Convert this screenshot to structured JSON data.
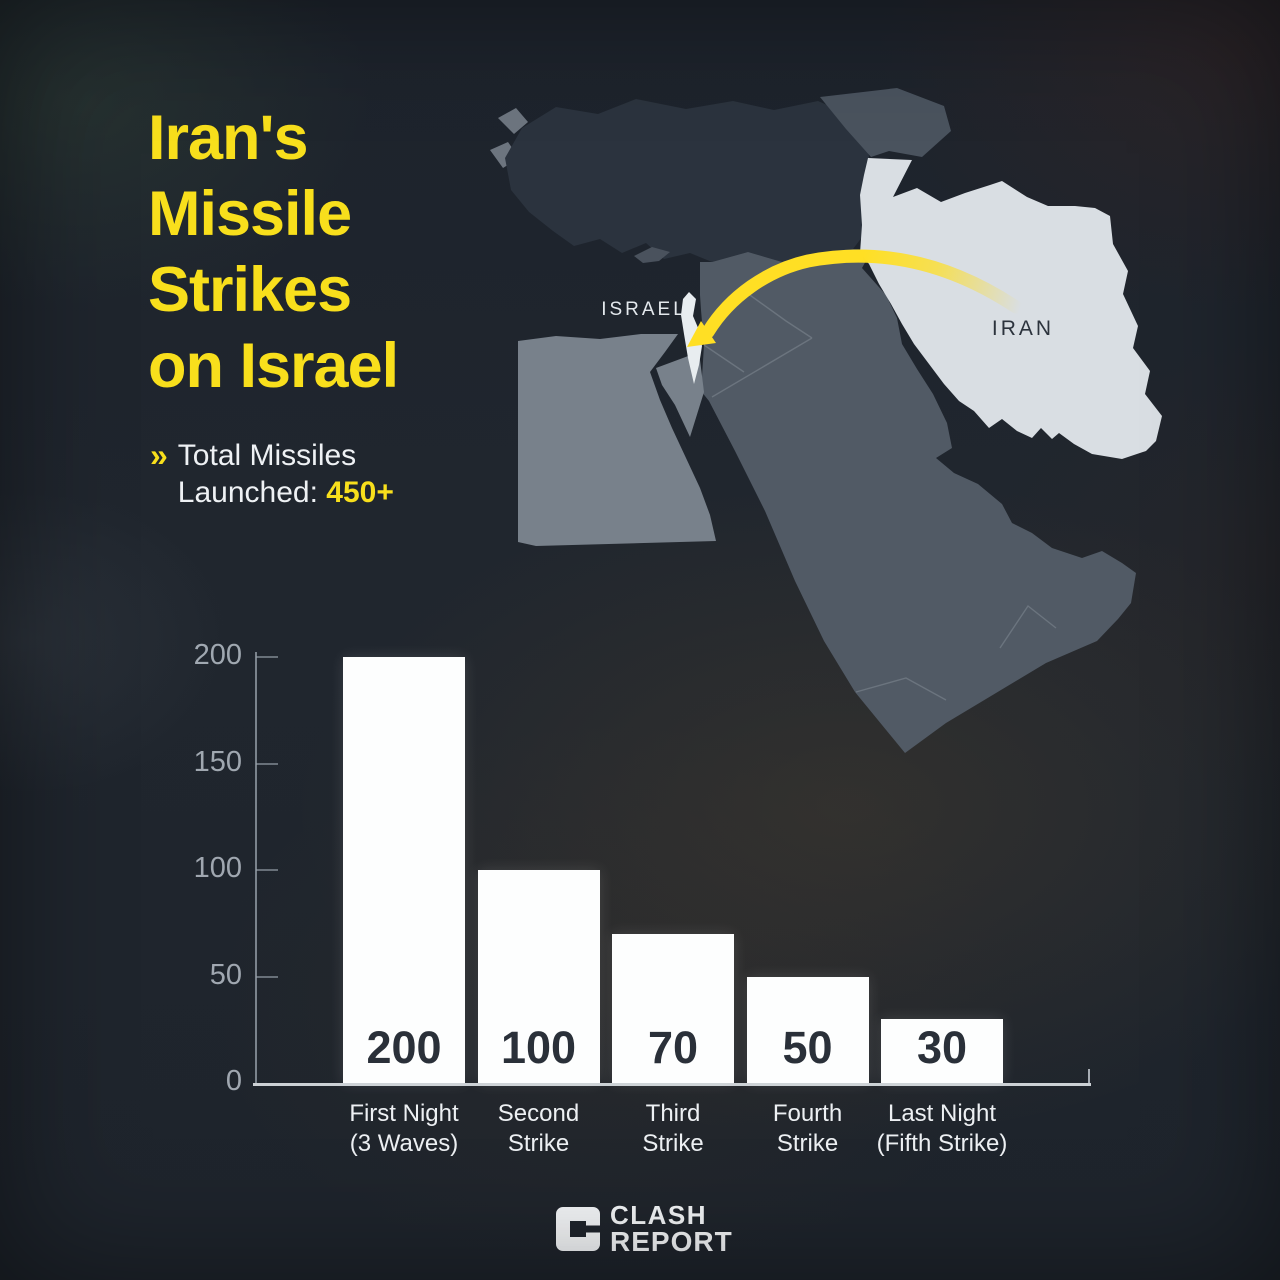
{
  "header": {
    "title": "Iran's\nMissile\nStrikes\non Israel",
    "subtitle": {
      "chevron": "»",
      "label": "Total Missiles Launched: ",
      "value": "450+"
    }
  },
  "map": {
    "israel_label": "ISRAEL",
    "iran_label": "IRAN",
    "arrow_color": "#ffdf24",
    "colors": {
      "turkey": "#2b333e",
      "arabia_levant": "#515a65",
      "egypt": "#78818b",
      "sinai": "#78818b",
      "cyprus": "#4a525d",
      "caucasus": "#4a535e",
      "aegean": "#7b848e",
      "iran": "#d9dee3",
      "israel": "#e8edf0",
      "border_lines": "#8b949e"
    }
  },
  "chart_data": {
    "type": "bar",
    "title": "",
    "categories": [
      "First Night\n(3 Waves)",
      "Second\nStrike",
      "Third\nStrike",
      "Fourth\nStrike",
      "Last Night\n(Fifth Strike)"
    ],
    "values": [
      200,
      100,
      70,
      50,
      30
    ],
    "value_labels": [
      "200",
      "100",
      "70",
      "50",
      "30"
    ],
    "y_ticks": [
      0,
      50,
      100,
      150,
      200
    ],
    "ylim": [
      0,
      200
    ],
    "xlabel": "",
    "ylabel": "",
    "grid": false,
    "legend": false,
    "bar_color": "#fdfefe",
    "value_label_color": "#2a3039",
    "tick_label_color": "#a7afb8"
  },
  "footer": {
    "brand_line1": "CLASH",
    "brand_line2": "REPORT"
  }
}
